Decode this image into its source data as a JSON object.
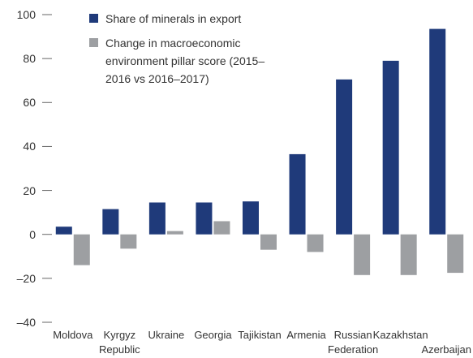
{
  "chart_data": {
    "type": "bar",
    "categories": [
      "Moldova",
      "Kyrgyz Republic",
      "Ukraine",
      "Georgia",
      "Tajikistan",
      "Armenia",
      "Russian Federation",
      "Kazakhstan",
      "Azerbaijan"
    ],
    "series": [
      {
        "name": "Share of minerals in export",
        "color": "#1f3a7a",
        "values": [
          3.5,
          11.5,
          14.5,
          14.5,
          15,
          36.5,
          70.5,
          79,
          93.5
        ]
      },
      {
        "name": "Change in macroeconomic environment pillar score (2015–2016 vs 2016–2017)",
        "color": "#9d9fa2",
        "values": [
          -14,
          -6.5,
          1.5,
          6,
          -7,
          -8,
          -18.5,
          -18.5,
          -17.5
        ]
      }
    ],
    "ylim": [
      -40,
      100
    ],
    "yticks": [
      {
        "value": -40,
        "label": "–40"
      },
      {
        "value": -20,
        "label": "–20"
      },
      0,
      20,
      40,
      60,
      80,
      100
    ],
    "grid": false
  }
}
